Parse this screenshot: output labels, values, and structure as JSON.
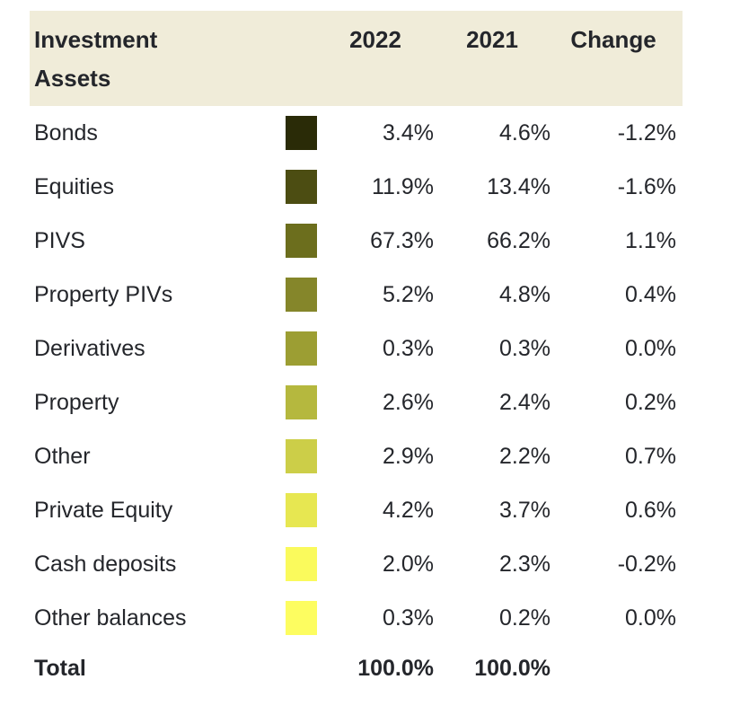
{
  "colors": {
    "page_bg": "#ffffff",
    "header_bg": "#f0ecd9",
    "text": "#24262b"
  },
  "table": {
    "header": {
      "title": "Investment Assets",
      "columns": [
        "2022",
        "2021",
        "Change"
      ]
    },
    "rows": [
      {
        "name": "Bonds",
        "swatch": "#2a2b07",
        "v2022": "3.4%",
        "v2021": "4.6%",
        "change": "-1.2%"
      },
      {
        "name": "Equities",
        "swatch": "#4c4d12",
        "v2022": "11.9%",
        "v2021": "13.4%",
        "change": "-1.6%"
      },
      {
        "name": "PIVS",
        "swatch": "#6c6e1d",
        "v2022": "67.3%",
        "v2021": "66.2%",
        "change": "1.1%"
      },
      {
        "name": "Property PIVs",
        "swatch": "#85862a",
        "v2022": "5.2%",
        "v2021": "4.8%",
        "change": "0.4%"
      },
      {
        "name": "Derivatives",
        "swatch": "#9c9e33",
        "v2022": "0.3%",
        "v2021": "0.3%",
        "change": "0.0%"
      },
      {
        "name": "Property",
        "swatch": "#b5b83e",
        "v2022": "2.6%",
        "v2021": "2.4%",
        "change": "0.2%"
      },
      {
        "name": "Other",
        "swatch": "#ccce48",
        "v2022": "2.9%",
        "v2021": "2.2%",
        "change": "0.7%"
      },
      {
        "name": "Private Equity",
        "swatch": "#e7e751",
        "v2022": "4.2%",
        "v2021": "3.7%",
        "change": "0.6%"
      },
      {
        "name": "Cash deposits",
        "swatch": "#fafa5c",
        "v2022": "2.0%",
        "v2021": "2.3%",
        "change": "-0.2%"
      },
      {
        "name": "Other balances",
        "swatch": "#fdfd60",
        "v2022": "0.3%",
        "v2021": "0.2%",
        "change": "0.0%"
      }
    ],
    "total": {
      "name": "Total",
      "v2022": "100.0%",
      "v2021": "100.0%",
      "change": ""
    }
  },
  "chart_data": {
    "type": "table",
    "title": "Investment Assets",
    "columns": [
      "Investment Assets",
      "2022",
      "2021",
      "Change"
    ],
    "categories": [
      "Bonds",
      "Equities",
      "PIVS",
      "Property PIVs",
      "Derivatives",
      "Property",
      "Other",
      "Private Equity",
      "Cash deposits",
      "Other balances"
    ],
    "series": [
      {
        "name": "2022",
        "values": [
          3.4,
          11.9,
          67.3,
          5.2,
          0.3,
          2.6,
          2.9,
          4.2,
          2.0,
          0.3
        ]
      },
      {
        "name": "2021",
        "values": [
          4.6,
          13.4,
          66.2,
          4.8,
          0.3,
          2.4,
          2.2,
          3.7,
          2.3,
          0.2
        ]
      },
      {
        "name": "Change",
        "values": [
          -1.2,
          -1.6,
          1.1,
          0.4,
          0.0,
          0.2,
          0.7,
          0.6,
          -0.2,
          0.0
        ]
      }
    ],
    "totals": {
      "2022": 100.0,
      "2021": 100.0
    },
    "swatch_colors": [
      "#2a2b07",
      "#4c4d12",
      "#6c6e1d",
      "#85862a",
      "#9c9e33",
      "#b5b83e",
      "#ccce48",
      "#e7e751",
      "#fafa5c",
      "#fdfd60"
    ],
    "layout": {
      "values_unit": "%",
      "swatch_legend": true,
      "header_background": "#f0ecd9"
    }
  }
}
